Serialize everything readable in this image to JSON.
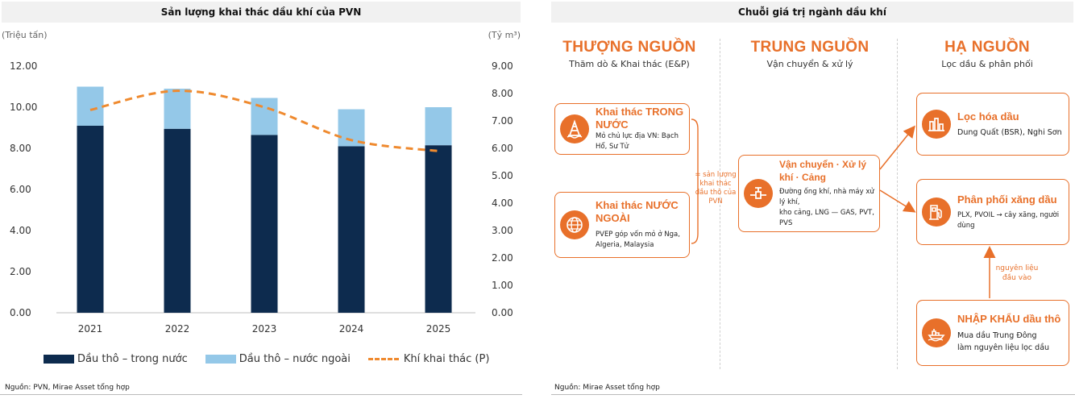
{
  "left_panel": {
    "title": "Sản lượng khai thác dầu khí của PVN",
    "source": "Nguồn: PVN, Mirae Asset tổng hợp"
  },
  "chart_data": {
    "type": "bar",
    "title": "Sản lượng khai thác dầu khí của PVN",
    "categories": [
      "2021",
      "2022",
      "2023",
      "2024",
      "2025"
    ],
    "stacked": true,
    "series": [
      {
        "name": "Dầu thô –  trong nước",
        "axis": "left",
        "kind": "bar",
        "color": "#0d2b4e",
        "values": [
          9.1,
          8.95,
          8.65,
          8.1,
          8.15
        ]
      },
      {
        "name": "Dầu thô –  nước ngoài",
        "axis": "left",
        "kind": "bar",
        "color": "#94c8e8",
        "values": [
          1.9,
          1.95,
          1.8,
          1.8,
          1.85
        ]
      },
      {
        "name": "Khí khai thác (P)",
        "axis": "right",
        "kind": "line",
        "style": "dashed",
        "color": "#ef8a2f",
        "values": [
          7.4,
          8.1,
          7.5,
          6.3,
          5.9
        ]
      }
    ],
    "ylabel_left": "(Triệu tấn)",
    "ylabel_right": "(Tỷ m³)",
    "ylim_left": [
      0,
      12
    ],
    "ylim_right": [
      0,
      9
    ],
    "yticks_left": [
      "0.00",
      "2.00",
      "4.00",
      "6.00",
      "8.00",
      "10.00",
      "12.00"
    ],
    "yticks_right": [
      "0.00",
      "1.00",
      "2.00",
      "3.00",
      "4.00",
      "5.00",
      "6.00",
      "7.00",
      "8.00",
      "9.00"
    ],
    "grid": false,
    "legend_position": "bottom"
  },
  "right_panel": {
    "title": "Chuỗi giá trị ngành dầu khí",
    "source": "Nguồn: Mirae Asset tổng hợp",
    "columns": [
      {
        "title": "THƯỢNG NGUỒN",
        "subtitle": "Thăm dò & Khai thác (E&P)"
      },
      {
        "title": "TRUNG NGUỒN",
        "subtitle": "Vận chuyển & xử lý"
      },
      {
        "title": "HẠ NGUỒN",
        "subtitle": "Lọc dầu & phân phối"
      }
    ],
    "boxes": {
      "domestic": {
        "title": "Khai thác TRONG NƯỚC",
        "desc": "Mỏ chủ lực địa VN: Bạch Hổ, Sư Tử",
        "icon": "oil-rig-icon"
      },
      "overseas": {
        "title": "Khai thác NƯỚC NGOÀI",
        "desc": "PVEP góp vốn mỏ ở Nga, Algeria, Malaysia",
        "icon": "globe-icon"
      },
      "midstream": {
        "title": "Vận chuyển · Xử lý khí · Cảng",
        "desc1": "Đường ống khí, nhà máy xử lý khí,",
        "desc2": "kho cảng, LNG — GAS, PVT, PVS",
        "icon": "pipeline-valve-icon"
      },
      "refining": {
        "title": "Lọc hóa dầu",
        "desc": "Dung Quất (BSR), Nghi Sơn",
        "icon": "refinery-icon"
      },
      "distribution": {
        "title": "Phân phối xăng dầu",
        "desc": "PLX, PVOIL → cây xăng, người dùng",
        "icon": "fuel-pump-icon"
      },
      "import": {
        "title": "NHẬP KHẨU dầu thô",
        "desc1": "Mua dầu Trung Đông",
        "desc2": "làm nguyên liệu lọc dầu",
        "icon": "tanker-ship-icon"
      }
    },
    "notes": {
      "upstream_sum": [
        "= sản lượng",
        "khai thác",
        "dầu thô của",
        "PVN"
      ],
      "feedstock": [
        "nguyên liệu",
        "đầu vào"
      ]
    },
    "accent_color": "#e8702a"
  }
}
